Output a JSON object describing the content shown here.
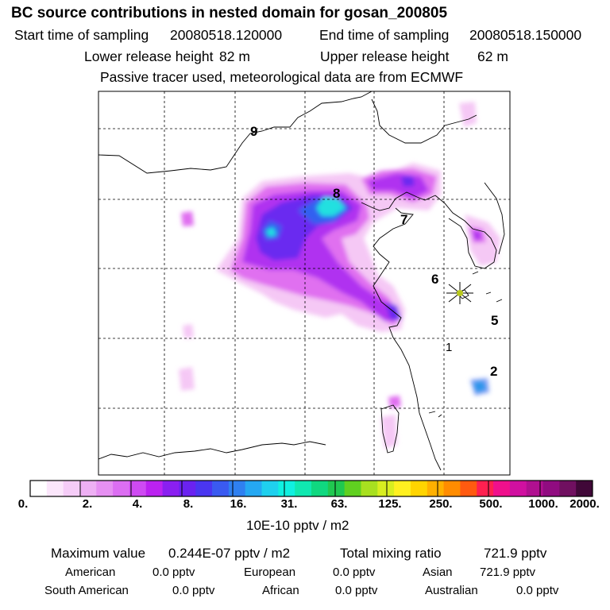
{
  "header": {
    "title": "BC  source contributions in nested domain for gosan_200805",
    "start_label": "Start time of sampling",
    "start_value": "20080518.120000",
    "end_label": "End time of sampling",
    "end_value": "20080518.150000",
    "lower_label": "Lower release height",
    "lower_value": "82 m",
    "upper_label": "Upper release height",
    "upper_value": "62 m",
    "tracer_note": "Passive tracer used, meteorological data are from ECMWF"
  },
  "map": {
    "trajectory_labels": [
      "9",
      "8",
      "7",
      "6",
      "5",
      "1",
      "2"
    ],
    "receptor": "gosan-station",
    "colors": {
      "white": "#ffffff",
      "light_pink": "#f5c8f5",
      "magenta": "#e070f0",
      "violet": "#b030f0",
      "blue_violet": "#6a2af0",
      "blue": "#3060f0",
      "cyan": "#20e0e0",
      "coast": "#000000"
    }
  },
  "colorbar": {
    "colors": [
      "#ffffff",
      "#fbe6fb",
      "#f5ccf7",
      "#eeb0f4",
      "#e690f2",
      "#dc6ef2",
      "#ce4af2",
      "#bb22f0",
      "#8a1ff0",
      "#6a22f0",
      "#4a36f0",
      "#3a5af0",
      "#2f80f0",
      "#25a8f2",
      "#1fd0ee",
      "#10f0e0",
      "#10e8b0",
      "#10d880",
      "#20c850",
      "#60d020",
      "#a8e020",
      "#d8ee20",
      "#fff020",
      "#ffd400",
      "#ffb000",
      "#ff8c00",
      "#ff5a10",
      "#ff2050",
      "#f0108c",
      "#d010a0",
      "#b01090",
      "#900c80",
      "#701060",
      "#400838"
    ],
    "tick_labels": [
      "0.",
      "2.",
      "4.",
      "8.",
      "16.",
      "31.",
      "63.",
      "125.",
      "250.",
      "500.",
      "1000.",
      "2000."
    ],
    "units": "10E-10 pptv / m2"
  },
  "summary": {
    "max_label": "Maximum value",
    "max_value": "0.244E-07 pptv / m2",
    "total_label": "Total mixing ratio",
    "total_value": "721.9 pptv",
    "regions": [
      {
        "name": "American",
        "value": "0.0 pptv"
      },
      {
        "name": "European",
        "value": "0.0 pptv"
      },
      {
        "name": "Asian",
        "value": "721.9 pptv"
      },
      {
        "name": "South American",
        "value": "0.0 pptv"
      },
      {
        "name": "African",
        "value": "0.0 pptv"
      },
      {
        "name": "Australian",
        "value": "0.0 pptv"
      }
    ]
  }
}
